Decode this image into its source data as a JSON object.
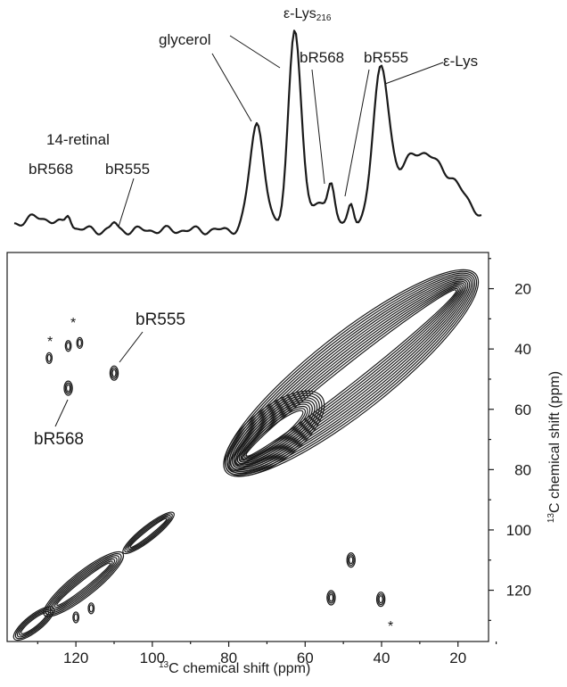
{
  "chart_data": {
    "type": "2D NMR correlation spectrum",
    "top_trace": {
      "description_kind": "1D 13C projection",
      "peak_labels": [
        "glycerol",
        "ε-Lys",
        "bR",
        "568",
        "bR",
        "555",
        "ε-Lys",
        "14-retinal",
        "bR",
        "568",
        "bR",
        "555"
      ],
      "labels": {
        "glycerol": "glycerol",
        "elys216_main": "ε-Lys",
        "elys216_sub": "216",
        "br568_a_main": "bR",
        "br568_a_sub": "568",
        "br555_a_main": "bR",
        "br555_a_sub": "555",
        "elys": "ε-Lys",
        "retinal14": "14-retinal",
        "br568_b_main": "bR",
        "br568_b_sub": "568",
        "br555_b_main": "bR",
        "br555_b_sub": "555"
      },
      "peaks_ppm": [
        {
          "label": "glycerol",
          "x": 72.6
        },
        {
          "label": "glycerol",
          "x": 62.8
        },
        {
          "label": "bR568",
          "x": 53.2
        },
        {
          "label": "bR555",
          "x": 48.0
        },
        {
          "label": "ε-Lys",
          "x": 40.2
        },
        {
          "label": "bR568",
          "x": 122.0
        },
        {
          "label": "bR555",
          "x": 110.0
        }
      ]
    },
    "plot_2d": {
      "xlabel_sup": "13",
      "xlabel_rest": "C chemical shift (ppm)",
      "ylabel_sup": "13",
      "ylabel_rest": "C chemical shift (ppm)",
      "xlim": [
        138,
        12
      ],
      "ylim": [
        8,
        137
      ],
      "x_ticks": [
        120,
        100,
        80,
        60,
        40,
        20
      ],
      "y_ticks": [
        20,
        40,
        60,
        80,
        100,
        120
      ],
      "annotations": {
        "br555_main": "bR",
        "br555_sub": "555",
        "br568_main": "bR",
        "br568_sub": "568",
        "asterisk": "*"
      },
      "cross_peaks": [
        {
          "x": 110.0,
          "y": 48.0,
          "label": "bR555"
        },
        {
          "x": 122.0,
          "y": 53.0,
          "label": "bR568"
        },
        {
          "x": 53.2,
          "y": 122.5
        },
        {
          "x": 48.0,
          "y": 110.0
        },
        {
          "x": 40.2,
          "y": 123.0
        },
        {
          "x": 122.0,
          "y": 39.0
        },
        {
          "x": 119.0,
          "y": 38.0
        },
        {
          "x": 127.0,
          "y": 43.0
        },
        {
          "x": 120.0,
          "y": 129.0
        },
        {
          "x": 116.0,
          "y": 126.0
        }
      ],
      "asterisks": [
        {
          "x": 127.5,
          "y": 36.0
        },
        {
          "x": 121.5,
          "y": 30.0
        },
        {
          "x": 36.0,
          "y": 129.0
        }
      ]
    }
  }
}
